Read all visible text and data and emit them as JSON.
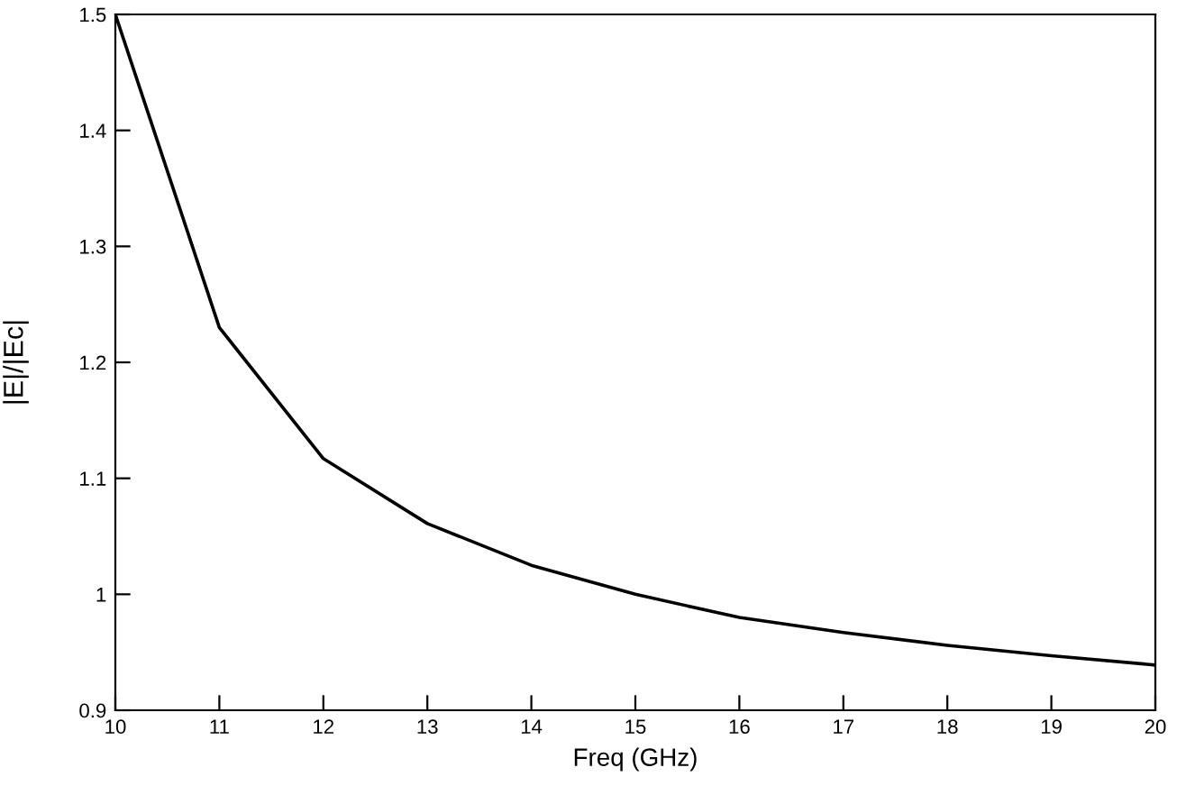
{
  "chart_data": {
    "type": "line",
    "xlabel": "Freq (GHz)",
    "ylabel": "|E|/|Ec|",
    "x": [
      10,
      11,
      12,
      13,
      14,
      15,
      16,
      17,
      18,
      19,
      20
    ],
    "series": [
      {
        "color": "#000000",
        "values": [
          1.5,
          1.23,
          1.117,
          1.061,
          1.025,
          1.0,
          0.98,
          0.967,
          0.956,
          0.947,
          0.939
        ]
      }
    ],
    "xlim": [
      10,
      20
    ],
    "xticks": [
      10,
      11,
      12,
      13,
      14,
      15,
      16,
      17,
      18,
      19,
      20
    ],
    "ylim": [
      0.9,
      1.5
    ],
    "yticks": [
      0.9,
      1,
      1.1,
      1.2,
      1.3,
      1.4,
      1.5
    ],
    "grid": false,
    "legend": false,
    "marker": "none",
    "line_style": "solid"
  }
}
